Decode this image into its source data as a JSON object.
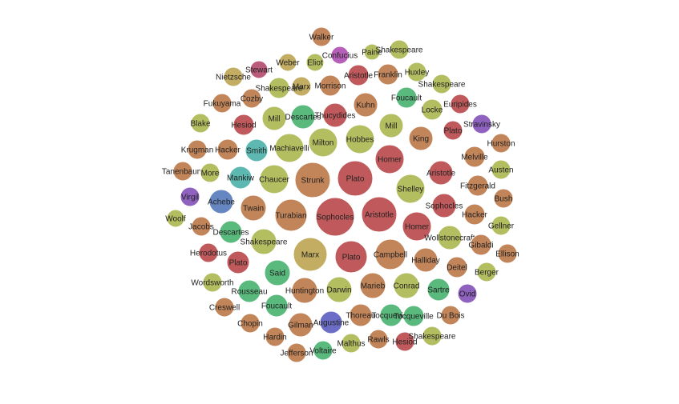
{
  "chart_data": {
    "type": "bubble",
    "title": "",
    "palette": {
      "red": "#c0595b",
      "brown": "#c28459",
      "olive": "#b3be60",
      "green": "#5ab97d",
      "teal": "#5db8b1",
      "blue": "#6686c2",
      "indigo": "#6b6dc6",
      "purple": "#8e62be",
      "magenta": "#b65fb9",
      "rose": "#bb5b7c",
      "khaki": "#c2ad62"
    },
    "bubbles": [
      {
        "label": "Walker",
        "color": "brown"
      },
      {
        "label": "Confucius",
        "color": "magenta"
      },
      {
        "label": "Paine",
        "color": "olive"
      },
      {
        "label": "Shakespeare",
        "color": "olive"
      },
      {
        "label": "Weber",
        "color": "khaki"
      },
      {
        "label": "Eliot",
        "color": "olive"
      },
      {
        "label": "Stewart",
        "color": "rose"
      },
      {
        "label": "Nietzsche",
        "color": "khaki"
      },
      {
        "label": "Marx",
        "color": "khaki"
      },
      {
        "label": "Morrison",
        "color": "brown"
      },
      {
        "label": "Aristotle",
        "color": "red"
      },
      {
        "label": "Franklin",
        "color": "brown"
      },
      {
        "label": "Huxley",
        "color": "olive"
      },
      {
        "label": "Shakespeare",
        "color": "olive"
      },
      {
        "label": "Shakespeare",
        "color": "olive"
      },
      {
        "label": "Cozby",
        "color": "brown"
      },
      {
        "label": "Fukuyama",
        "color": "brown"
      },
      {
        "label": "Foucault",
        "color": "green"
      },
      {
        "label": "Euripides",
        "color": "red"
      },
      {
        "label": "Kuhn",
        "color": "brown"
      },
      {
        "label": "Mill",
        "color": "olive"
      },
      {
        "label": "Descartes",
        "color": "green"
      },
      {
        "label": "Thucydides",
        "color": "red"
      },
      {
        "label": "Locke",
        "color": "olive"
      },
      {
        "label": "Blake",
        "color": "olive"
      },
      {
        "label": "Hesiod",
        "color": "red"
      },
      {
        "label": "Mill",
        "color": "olive"
      },
      {
        "label": "Plato",
        "color": "red"
      },
      {
        "label": "Stravinsky",
        "color": "purple"
      },
      {
        "label": "Machiavelli",
        "color": "olive"
      },
      {
        "label": "Milton",
        "color": "olive"
      },
      {
        "label": "Hobbes",
        "color": "olive"
      },
      {
        "label": "King",
        "color": "brown"
      },
      {
        "label": "Hurston",
        "color": "brown"
      },
      {
        "label": "Krugman",
        "color": "brown"
      },
      {
        "label": "Hacker",
        "color": "brown"
      },
      {
        "label": "Smith",
        "color": "teal"
      },
      {
        "label": "Homer",
        "color": "red"
      },
      {
        "label": "Melville",
        "color": "brown"
      },
      {
        "label": "Tanenbaum",
        "color": "brown"
      },
      {
        "label": "More",
        "color": "olive"
      },
      {
        "label": "Mankiw",
        "color": "teal"
      },
      {
        "label": "Chaucer",
        "color": "olive"
      },
      {
        "label": "Strunk",
        "color": "brown"
      },
      {
        "label": "Plato",
        "color": "red"
      },
      {
        "label": "Aristotle",
        "color": "red"
      },
      {
        "label": "Austen",
        "color": "olive"
      },
      {
        "label": "Shelley",
        "color": "olive"
      },
      {
        "label": "Fitzgerald",
        "color": "brown"
      },
      {
        "label": "Virgil",
        "color": "purple"
      },
      {
        "label": "Achebe",
        "color": "blue"
      },
      {
        "label": "Bush",
        "color": "brown"
      },
      {
        "label": "Twain",
        "color": "brown"
      },
      {
        "label": "Sophocles",
        "color": "red"
      },
      {
        "label": "Woolf",
        "color": "olive"
      },
      {
        "label": "Turabian",
        "color": "brown"
      },
      {
        "label": "Sophocles",
        "color": "red"
      },
      {
        "label": "Aristotle",
        "color": "red"
      },
      {
        "label": "Hacker",
        "color": "brown"
      },
      {
        "label": "Jacobs",
        "color": "brown"
      },
      {
        "label": "Gellner",
        "color": "olive"
      },
      {
        "label": "Homer",
        "color": "red"
      },
      {
        "label": "Descartes",
        "color": "green"
      },
      {
        "label": "Wollstonecraft",
        "color": "olive"
      },
      {
        "label": "Shakespeare",
        "color": "olive"
      },
      {
        "label": "Gibaldi",
        "color": "brown"
      },
      {
        "label": "Herodotus",
        "color": "red"
      },
      {
        "label": "Ellison",
        "color": "brown"
      },
      {
        "label": "Marx",
        "color": "khaki"
      },
      {
        "label": "Campbell",
        "color": "brown"
      },
      {
        "label": "Plato",
        "color": "red"
      },
      {
        "label": "Plato",
        "color": "red"
      },
      {
        "label": "Halliday",
        "color": "brown"
      },
      {
        "label": "Deitel",
        "color": "brown"
      },
      {
        "label": "Said",
        "color": "green"
      },
      {
        "label": "Berger",
        "color": "olive"
      },
      {
        "label": "Wordsworth",
        "color": "olive"
      },
      {
        "label": "Huntington",
        "color": "brown"
      },
      {
        "label": "Darwin",
        "color": "olive"
      },
      {
        "label": "Marieb",
        "color": "brown"
      },
      {
        "label": "Conrad",
        "color": "olive"
      },
      {
        "label": "Sartre",
        "color": "green"
      },
      {
        "label": "Rousseau",
        "color": "green"
      },
      {
        "label": "Ovid",
        "color": "purple"
      },
      {
        "label": "Creswell",
        "color": "brown"
      },
      {
        "label": "Foucault",
        "color": "green"
      },
      {
        "label": "Thoreau",
        "color": "brown"
      },
      {
        "label": "Tocqueville",
        "color": "green"
      },
      {
        "label": "Tocqueville",
        "color": "green"
      },
      {
        "label": "Du Bois",
        "color": "brown"
      },
      {
        "label": "Chopin",
        "color": "brown"
      },
      {
        "label": "Gilman",
        "color": "brown"
      },
      {
        "label": "Augustine",
        "color": "indigo"
      },
      {
        "label": "Hardin",
        "color": "brown"
      },
      {
        "label": "Malthus",
        "color": "olive"
      },
      {
        "label": "Rawls",
        "color": "brown"
      },
      {
        "label": "Hesiod",
        "color": "red"
      },
      {
        "label": "Shakespeare",
        "color": "olive"
      },
      {
        "label": "Jefferson",
        "color": "brown"
      },
      {
        "label": "Voltaire",
        "color": "green"
      }
    ]
  }
}
